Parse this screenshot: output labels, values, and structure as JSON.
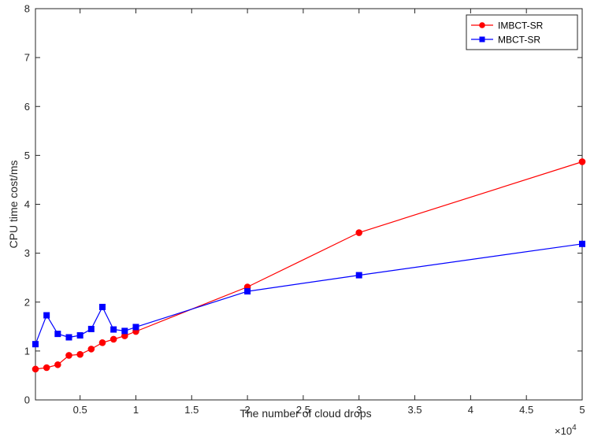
{
  "chart_data": {
    "type": "line",
    "title": "",
    "xlabel": "The number of cloud drops",
    "ylabel": "CPU time cost/ms",
    "x_exponent_label": "×10",
    "x_exponent_power": "4",
    "xlim": [
      0.1,
      5
    ],
    "ylim": [
      0,
      8
    ],
    "xticks": [
      0.5,
      1,
      1.5,
      2,
      2.5,
      3,
      3.5,
      4,
      4.5,
      5
    ],
    "xtick_labels": [
      "0.5",
      "1",
      "1.5",
      "2",
      "2.5",
      "3",
      "3.5",
      "4",
      "4.5",
      "5"
    ],
    "yticks": [
      0,
      1,
      2,
      3,
      4,
      5,
      6,
      7,
      8
    ],
    "ytick_labels": [
      "0",
      "1",
      "2",
      "3",
      "4",
      "5",
      "6",
      "7",
      "8"
    ],
    "grid": false,
    "legend_position": "top-right",
    "x": [
      0.1,
      0.2,
      0.3,
      0.4,
      0.5,
      0.6,
      0.7,
      0.8,
      0.9,
      1,
      2,
      3,
      5
    ],
    "series": [
      {
        "name": "IMBCT-SR",
        "color": "#ff0000",
        "marker": "circle",
        "values": [
          0.63,
          0.66,
          0.72,
          0.91,
          0.93,
          1.04,
          1.17,
          1.24,
          1.31,
          1.4,
          2.31,
          3.42,
          4.87
        ]
      },
      {
        "name": "MBCT-SR",
        "color": "#0000ff",
        "marker": "square",
        "values": [
          1.14,
          1.73,
          1.35,
          1.28,
          1.32,
          1.45,
          1.9,
          1.44,
          1.41,
          1.49,
          2.22,
          2.55,
          3.19
        ]
      }
    ]
  }
}
